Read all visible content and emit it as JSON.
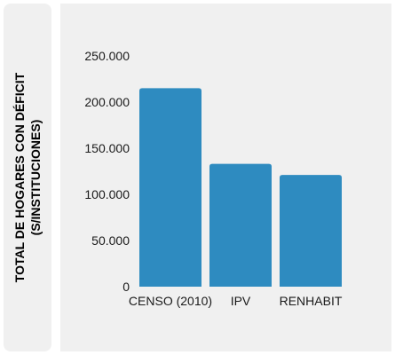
{
  "chart_data": {
    "type": "bar",
    "categories": [
      "CENSO (2010)",
      "IPV",
      "RENHABIT"
    ],
    "values": [
      215000,
      133000,
      121000
    ],
    "ylabel_lines": [
      "TOTAL DE HOGARES CON DÉFICIT",
      "(S/INSTITUCIONES)"
    ],
    "ylim": [
      0,
      250000
    ],
    "yticks": [
      0,
      50000,
      100000,
      150000,
      200000,
      250000
    ],
    "ytick_labels": [
      "0",
      "50.000",
      "100.000",
      "150.000",
      "200.000",
      "250.000"
    ],
    "grid": false,
    "bar_color": "#2e8bc0"
  }
}
